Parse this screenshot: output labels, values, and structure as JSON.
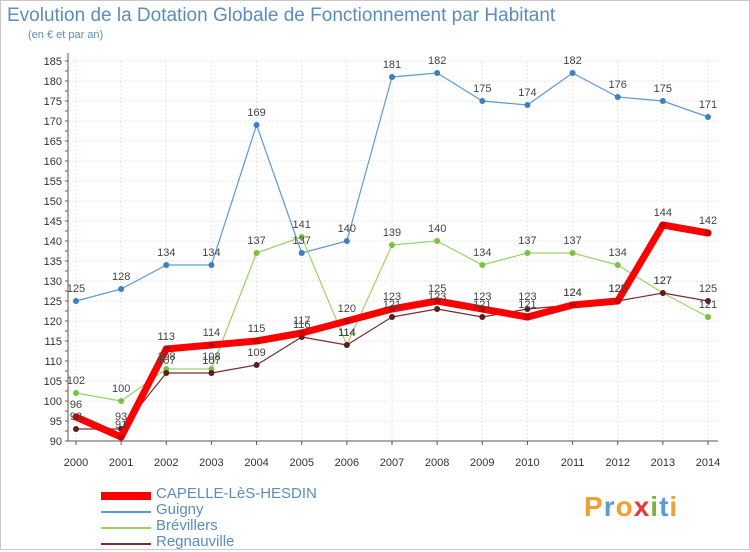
{
  "header": {
    "title": "Evolution de la Dotation Globale de Fonctionnement par Habitant",
    "subtitle": "(en € et par an)"
  },
  "logo": {
    "letters": [
      "P",
      "r",
      "o",
      "x",
      "i",
      "t",
      "i"
    ],
    "colors": [
      "#f0a030",
      "#5b9bd5",
      "#f0a030",
      "#e53935",
      "#7cb342",
      "#5b9bd5",
      "#f0a030"
    ]
  },
  "chart_data": {
    "type": "line",
    "title": "Evolution de la Dotation Globale de Fonctionnement par Habitant",
    "subtitle": "(en € et par an)",
    "xlabel": "",
    "ylabel": "",
    "x": [
      2000,
      2001,
      2002,
      2003,
      2004,
      2005,
      2006,
      2007,
      2008,
      2009,
      2010,
      2011,
      2012,
      2013,
      2014
    ],
    "ylim": [
      90,
      185
    ],
    "yticks": [
      90,
      95,
      100,
      105,
      110,
      115,
      120,
      125,
      130,
      135,
      140,
      145,
      150,
      155,
      160,
      165,
      170,
      175,
      180,
      185
    ],
    "grid": true,
    "legend_position": "bottom-left",
    "series": [
      {
        "name": "Guigny",
        "color": "#5b9bd5",
        "dot": "#3d7fc1",
        "values": [
          125,
          128,
          134,
          134,
          169,
          137,
          140,
          181,
          182,
          175,
          174,
          182,
          176,
          175,
          171
        ]
      },
      {
        "name": "Brévillers",
        "color": "#9ad466",
        "dot": "#7cc241",
        "values": [
          102,
          100,
          108,
          108,
          137,
          141,
          114,
          139,
          140,
          134,
          137,
          137,
          134,
          127,
          121
        ]
      },
      {
        "name": "Regnauville",
        "color": "#7a2c2c",
        "dot": "#5a1e1e",
        "values": [
          93,
          93,
          107,
          107,
          109,
          116,
          114,
          121,
          123,
          121,
          123,
          124,
          125,
          127,
          125
        ]
      },
      {
        "name": "CAPELLE-LèS-HESDIN",
        "color": "#ff0000",
        "dot": "#cc0000",
        "values": [
          96,
          91,
          113,
          114,
          115,
          117,
          120,
          123,
          125,
          123,
          121,
          124,
          125,
          144,
          142
        ]
      }
    ]
  }
}
